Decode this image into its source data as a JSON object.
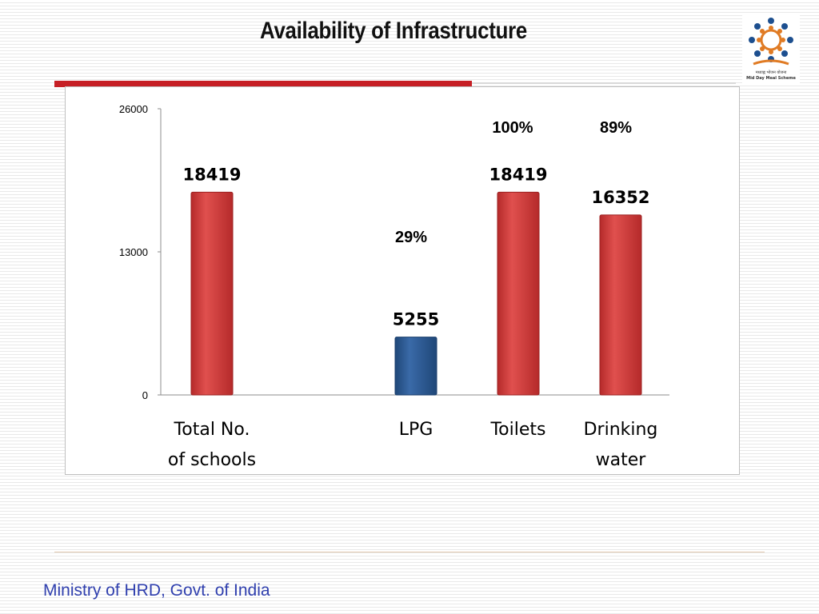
{
  "slide": {
    "title": "Availability of Infrastructure",
    "footer": "Ministry of HRD, Govt. of India"
  },
  "logo": {
    "hindi_text": "मध्याह्न भोजन योजना",
    "english_text": "Mid Day Meal Scheme"
  },
  "colors": {
    "bar_red": "#d9403f",
    "bar_blue": "#2d5b94",
    "accent_rule": "#c61f25",
    "footer_text": "#2f3fae"
  },
  "chart_data": {
    "type": "bar",
    "categories": [
      [
        "Total No.",
        "of schools"
      ],
      [
        "LPG"
      ],
      [
        "Toilets"
      ],
      [
        "Drinking",
        "water"
      ]
    ],
    "values": [
      18419,
      5255,
      18419,
      16352
    ],
    "data_labels": [
      "18419",
      "5255",
      "18419",
      "16352"
    ],
    "bar_colors": [
      "red",
      "blue",
      "red",
      "red"
    ],
    "percent_labels": [
      "",
      "29%",
      "100%",
      "89%"
    ],
    "yticks": [
      0,
      13000,
      26000
    ],
    "ylim": [
      0,
      26000
    ],
    "title": "",
    "xlabel": "",
    "ylabel": "",
    "grid": false,
    "legend": "none"
  }
}
